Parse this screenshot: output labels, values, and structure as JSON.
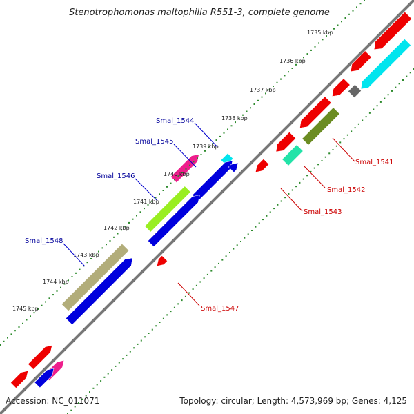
{
  "title": "Stenotrophomonas maltophilia R551-3, complete genome",
  "accession": "Accession: NC_011071",
  "summary": "Topology: circular; Length: 4,573,969 bp; Genes: 4,125",
  "ticks": [
    "1735 kbp",
    "1736 kbp",
    "1737 kbp",
    "1738 kbp",
    "1739 kbp",
    "1740 kbp",
    "1741 kbp",
    "1742 kbp",
    "1743 kbp",
    "1744 kbp",
    "1745 kbp"
  ],
  "gene_labels_forward": [
    "Smal_1544",
    "Smal_1545",
    "Smal_1546",
    "Smal_1548"
  ],
  "gene_labels_reverse": [
    "Smal_1541",
    "Smal_1542",
    "Smal_1543",
    "Smal_1547"
  ],
  "colors": {
    "backbone": "#777777",
    "tick_outer": "#2e8b2e",
    "tick_inner": "#2e8b2e",
    "red": "#ee0000",
    "blue": "#0000dd",
    "magenta": "#ee1e8c",
    "lime": "#99ee22",
    "khaki": "#b2ad7a",
    "olive": "#6b8c22",
    "cyan": "#00e5ee",
    "teal": "#22e3a8",
    "gray": "#666666"
  }
}
